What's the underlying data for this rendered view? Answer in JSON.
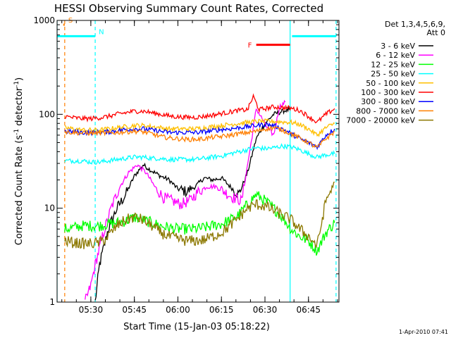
{
  "chart_data": {
    "type": "line",
    "title": "HESSI Observing Summary Count Rates, Corrected",
    "xlabel": "Start Time (15-Jan-03 05:18:22)",
    "ylabel_main": "Corrected Count Rate (s",
    "ylabel_sup1": "-1",
    "ylabel_mid": " detector",
    "ylabel_sup2": "-1",
    "ylabel_end": ")",
    "y_scale": "log",
    "ylim": [
      1,
      1000
    ],
    "xlim_minutes": [
      "05:18:22",
      "06:55:30"
    ],
    "x_tick_labels": [
      "05:30",
      "05:45",
      "06:00",
      "06:15",
      "06:30",
      "06:45"
    ],
    "x_tick_values": [
      "05:30",
      "05:45",
      "06:00",
      "06:15",
      "06:30",
      "06:45"
    ],
    "y_tick_labels": [
      "1",
      "10",
      "100",
      "1000"
    ],
    "y_tick_values": [
      1,
      10,
      100,
      1000
    ],
    "legend_header": [
      "Det 1,3,4,5,6,9,",
      "Att 0"
    ],
    "legend_placement": "right",
    "footer_date": "1-Apr-2010 07:41",
    "annotations": [
      {
        "label": "S",
        "color": "#ff7f00",
        "start": "05:20:30",
        "end": "05:21:00",
        "level": 900
      },
      {
        "label": "N",
        "color": "#00ffff",
        "start": "05:18:22",
        "end": "05:31:30",
        "level": 680
      },
      {
        "label": "F",
        "color": "#ff0000",
        "start": "06:27:00",
        "end": "06:38:40",
        "level": 550
      },
      {
        "label": "",
        "color": "#00ffff",
        "start": "06:39:20",
        "end": "06:54:30",
        "level": 680
      }
    ],
    "vertical_markers": [
      {
        "time": "05:18:22",
        "color": "#00ffff",
        "style": "solid"
      },
      {
        "time": "05:21:00",
        "color": "#ff7f00",
        "style": "dashed"
      },
      {
        "time": "05:31:30",
        "color": "#00ffff",
        "style": "dashed"
      },
      {
        "time": "06:38:40",
        "color": "#00ffff",
        "style": "solid"
      },
      {
        "time": "06:54:30",
        "color": "#00ffff",
        "style": "dashed"
      }
    ],
    "series": [
      {
        "name": "3 - 6 keV",
        "color": "#000000",
        "x": [
          "05:31:30",
          "05:33:00",
          "05:36:00",
          "05:39:00",
          "05:42:00",
          "05:45:00",
          "05:48:00",
          "05:51:00",
          "05:54:00",
          "05:57:00",
          "06:00:00",
          "06:03:00",
          "06:06:00",
          "06:09:00",
          "06:12:00",
          "06:15:00",
          "06:18:00",
          "06:21:00",
          "06:24:00",
          "06:27:00",
          "06:30:00",
          "06:33:00",
          "06:35:00",
          "06:37:00",
          "06:38:30"
        ],
        "y": [
          1,
          2.5,
          6,
          10,
          14,
          22,
          29,
          25,
          22,
          20,
          16,
          15,
          17,
          21,
          20,
          21,
          17,
          14,
          24,
          55,
          80,
          100,
          105,
          110,
          112
        ]
      },
      {
        "name": "6 - 12 keV",
        "color": "#ff00ff",
        "x": [
          "05:28:00",
          "05:30:00",
          "05:31:30",
          "05:34:00",
          "05:37:00",
          "05:40:00",
          "05:43:00",
          "05:46:00",
          "05:49:00",
          "05:52:00",
          "05:55:00",
          "05:58:00",
          "06:01:00",
          "06:04:00",
          "06:07:00",
          "06:10:00",
          "06:13:00",
          "06:16:00",
          "06:19:00",
          "06:22:00",
          "06:25:00",
          "06:27:00",
          "06:29:00",
          "06:31:00",
          "06:33:00",
          "06:35:00",
          "06:37:00"
        ],
        "y": [
          1,
          1.5,
          2.5,
          5,
          10,
          17,
          24,
          29,
          24,
          17,
          13,
          12,
          11,
          12,
          15,
          17,
          17,
          15,
          13,
          12,
          45,
          115,
          90,
          70,
          60,
          120,
          135
        ]
      },
      {
        "name": "12 - 25 keV",
        "color": "#00ff00",
        "x": [
          "05:21:00",
          "05:24:00",
          "05:27:00",
          "05:30:00",
          "05:33:00",
          "05:36:00",
          "05:39:00",
          "05:42:00",
          "05:45:00",
          "05:48:00",
          "05:51:00",
          "05:54:00",
          "05:57:00",
          "06:00:00",
          "06:03:00",
          "06:06:00",
          "06:09:00",
          "06:12:00",
          "06:15:00",
          "06:18:00",
          "06:21:00",
          "06:24:00",
          "06:27:00",
          "06:30:00",
          "06:33:00",
          "06:36:00",
          "06:39:00",
          "06:42:00",
          "06:45:00",
          "06:48:00",
          "06:51:00",
          "06:54:00"
        ],
        "y": [
          6,
          6.2,
          6.5,
          6.5,
          6.5,
          6.8,
          7,
          7.3,
          8,
          7.5,
          7,
          6.5,
          6.2,
          6,
          6,
          6,
          6.2,
          6.5,
          6.8,
          7.5,
          8.5,
          11,
          14,
          12,
          10,
          8,
          6,
          5,
          4.5,
          3.5,
          5.5,
          7
        ]
      },
      {
        "name": "25 - 50 keV",
        "color": "#00ffff",
        "x": [
          "05:21:00",
          "05:24:00",
          "05:27:00",
          "05:30:00",
          "05:33:00",
          "05:36:00",
          "05:39:00",
          "05:42:00",
          "05:45:00",
          "05:48:00",
          "05:51:00",
          "05:54:00",
          "05:57:00",
          "06:00:00",
          "06:03:00",
          "06:06:00",
          "06:09:00",
          "06:12:00",
          "06:15:00",
          "06:18:00",
          "06:21:00",
          "06:24:00",
          "06:27:00",
          "06:30:00",
          "06:33:00",
          "06:36:00",
          "06:39:00",
          "06:42:00",
          "06:45:00",
          "06:48:00",
          "06:51:00",
          "06:54:00"
        ],
        "y": [
          32,
          32,
          32,
          31,
          31,
          32,
          33,
          34,
          35,
          35,
          34,
          34,
          33,
          33,
          33,
          33,
          34,
          35,
          36,
          38,
          40,
          42,
          44,
          43,
          44,
          46,
          45,
          42,
          38,
          35,
          37,
          38
        ]
      },
      {
        "name": "50 - 100 keV",
        "color": "#ffbf00",
        "x": [
          "05:21:00",
          "05:24:00",
          "05:27:00",
          "05:30:00",
          "05:33:00",
          "05:36:00",
          "05:39:00",
          "05:42:00",
          "05:45:00",
          "05:48:00",
          "05:51:00",
          "05:54:00",
          "05:57:00",
          "06:00:00",
          "06:03:00",
          "06:06:00",
          "06:09:00",
          "06:12:00",
          "06:15:00",
          "06:18:00",
          "06:21:00",
          "06:24:00",
          "06:27:00",
          "06:30:00",
          "06:33:00",
          "06:36:00",
          "06:39:00",
          "06:42:00",
          "06:45:00",
          "06:48:00",
          "06:51:00",
          "06:54:00"
        ],
        "y": [
          72,
          70,
          68,
          68,
          68,
          70,
          72,
          74,
          76,
          76,
          74,
          72,
          70,
          70,
          70,
          70,
          72,
          74,
          76,
          78,
          80,
          82,
          84,
          84,
          84,
          83,
          82,
          78,
          70,
          60,
          72,
          80
        ]
      },
      {
        "name": "100 - 300 keV",
        "color": "#ff0000",
        "x": [
          "05:21:00",
          "05:24:00",
          "05:27:00",
          "05:30:00",
          "05:33:00",
          "05:36:00",
          "05:39:00",
          "05:42:00",
          "05:45:00",
          "05:48:00",
          "05:51:00",
          "05:54:00",
          "05:57:00",
          "06:00:00",
          "06:03:00",
          "06:06:00",
          "06:09:00",
          "06:12:00",
          "06:15:00",
          "06:18:00",
          "06:21:00",
          "06:24:00",
          "06:26:00",
          "06:28:00",
          "06:30:00",
          "06:33:00",
          "06:36:00",
          "06:39:00",
          "06:42:00",
          "06:45:00",
          "06:48:00",
          "06:51:00",
          "06:54:00"
        ],
        "y": [
          95,
          92,
          90,
          90,
          92,
          95,
          100,
          104,
          108,
          108,
          104,
          100,
          96,
          94,
          93,
          93,
          95,
          98,
          102,
          106,
          110,
          112,
          155,
          112,
          115,
          120,
          118,
          116,
          110,
          95,
          82,
          100,
          115
        ]
      },
      {
        "name": "300 - 800 keV",
        "color": "#0000ff",
        "x": [
          "05:21:00",
          "05:24:00",
          "05:27:00",
          "05:30:00",
          "05:33:00",
          "05:36:00",
          "05:39:00",
          "05:42:00",
          "05:45:00",
          "05:48:00",
          "05:51:00",
          "05:54:00",
          "05:57:00",
          "06:00:00",
          "06:03:00",
          "06:06:00",
          "06:09:00",
          "06:12:00",
          "06:15:00",
          "06:18:00",
          "06:21:00",
          "06:24:00",
          "06:27:00",
          "06:30:00",
          "06:33:00",
          "06:36:00",
          "06:39:00",
          "06:42:00",
          "06:45:00",
          "06:48:00",
          "06:51:00",
          "06:54:00"
        ],
        "y": [
          66,
          65,
          64,
          64,
          64,
          65,
          67,
          69,
          70,
          70,
          68,
          66,
          64,
          64,
          64,
          64,
          65,
          67,
          69,
          70,
          72,
          74,
          76,
          78,
          76,
          70,
          62,
          55,
          50,
          45,
          60,
          70
        ]
      },
      {
        "name": "800 - 7000 keV",
        "color": "#ff7f00",
        "x": [
          "05:21:00",
          "05:24:00",
          "05:27:00",
          "05:30:00",
          "05:33:00",
          "05:36:00",
          "05:39:00",
          "05:42:00",
          "05:45:00",
          "05:48:00",
          "05:51:00",
          "05:54:00",
          "05:57:00",
          "06:00:00",
          "06:03:00",
          "06:06:00",
          "06:09:00",
          "06:12:00",
          "06:15:00",
          "06:18:00",
          "06:21:00",
          "06:24:00",
          "06:27:00",
          "06:30:00",
          "06:33:00",
          "06:36:00",
          "06:39:00",
          "06:42:00",
          "06:45:00",
          "06:48:00",
          "06:51:00",
          "06:54:00"
        ],
        "y": [
          65,
          64,
          63,
          63,
          63,
          63,
          64,
          65,
          66,
          65,
          62,
          58,
          56,
          55,
          54,
          54,
          55,
          57,
          58,
          60,
          62,
          64,
          66,
          70,
          72,
          68,
          62,
          56,
          50,
          44,
          55,
          65
        ]
      },
      {
        "name": "7000 - 20000 keV",
        "color": "#8c7800",
        "x": [
          "05:21:00",
          "05:24:00",
          "05:27:00",
          "05:30:00",
          "05:33:00",
          "05:36:00",
          "05:39:00",
          "05:42:00",
          "05:45:00",
          "05:48:00",
          "05:51:00",
          "05:54:00",
          "05:57:00",
          "06:00:00",
          "06:03:00",
          "06:06:00",
          "06:09:00",
          "06:12:00",
          "06:15:00",
          "06:18:00",
          "06:21:00",
          "06:24:00",
          "06:27:00",
          "06:30:00",
          "06:33:00",
          "06:36:00",
          "06:39:00",
          "06:42:00",
          "06:45:00",
          "06:48:00",
          "06:51:00",
          "06:54:00"
        ],
        "y": [
          4.5,
          4.3,
          4.2,
          4.2,
          4.3,
          5,
          6.5,
          7.5,
          8,
          7.5,
          6.5,
          5.5,
          5,
          4.7,
          4.5,
          4.5,
          4.6,
          5,
          5.5,
          6.5,
          8,
          10,
          11,
          10.5,
          9.5,
          8.5,
          7.5,
          6,
          5,
          4,
          12,
          19
        ]
      }
    ]
  }
}
